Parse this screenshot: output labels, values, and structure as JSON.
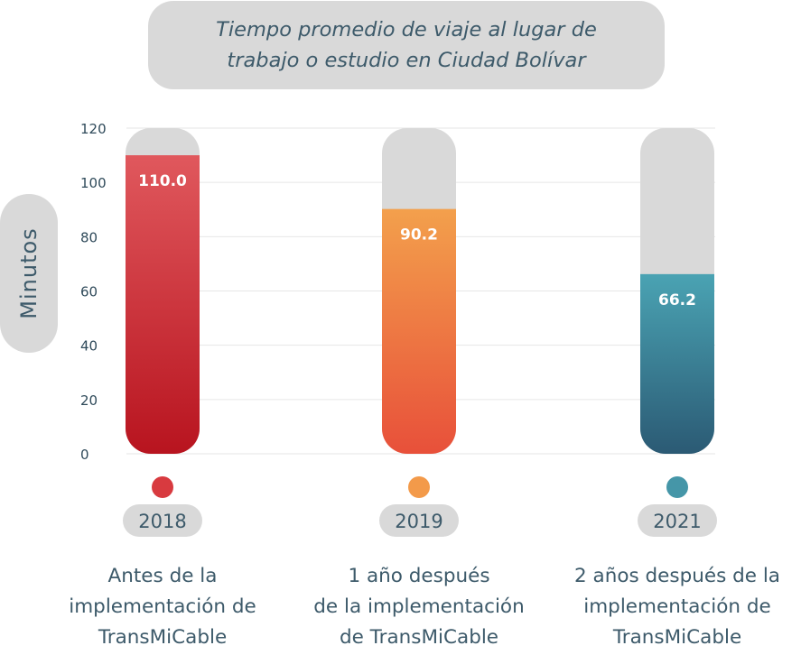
{
  "title_lines": [
    "Tiempo promedio de viaje al lugar de",
    "trabajo o estudio en Ciudad Bolívar"
  ],
  "chart_data": {
    "type": "bar",
    "title": "Tiempo promedio de viaje al lugar de trabajo o estudio en Ciudad Bolívar",
    "ylabel": "Minutos",
    "ylim": [
      0,
      120
    ],
    "yticks": [
      0,
      20,
      40,
      60,
      80,
      100,
      120
    ],
    "grid": true,
    "categories": [
      "2018",
      "2019",
      "2021"
    ],
    "values": [
      110.0,
      90.2,
      66.2
    ],
    "value_labels": [
      "110.0",
      "90.2",
      "66.2"
    ],
    "colors": [
      "#d83a3f",
      "#f39a4a",
      "#4596a8"
    ],
    "track_color": "#d9d9d9",
    "descriptions": [
      [
        "Antes de la",
        "implementación de",
        "TransMiCable"
      ],
      [
        "1 año después",
        "de la implementación",
        "de TransMiCable"
      ],
      [
        "2 años después de la",
        "implementación de",
        "TransMiCable"
      ]
    ]
  }
}
